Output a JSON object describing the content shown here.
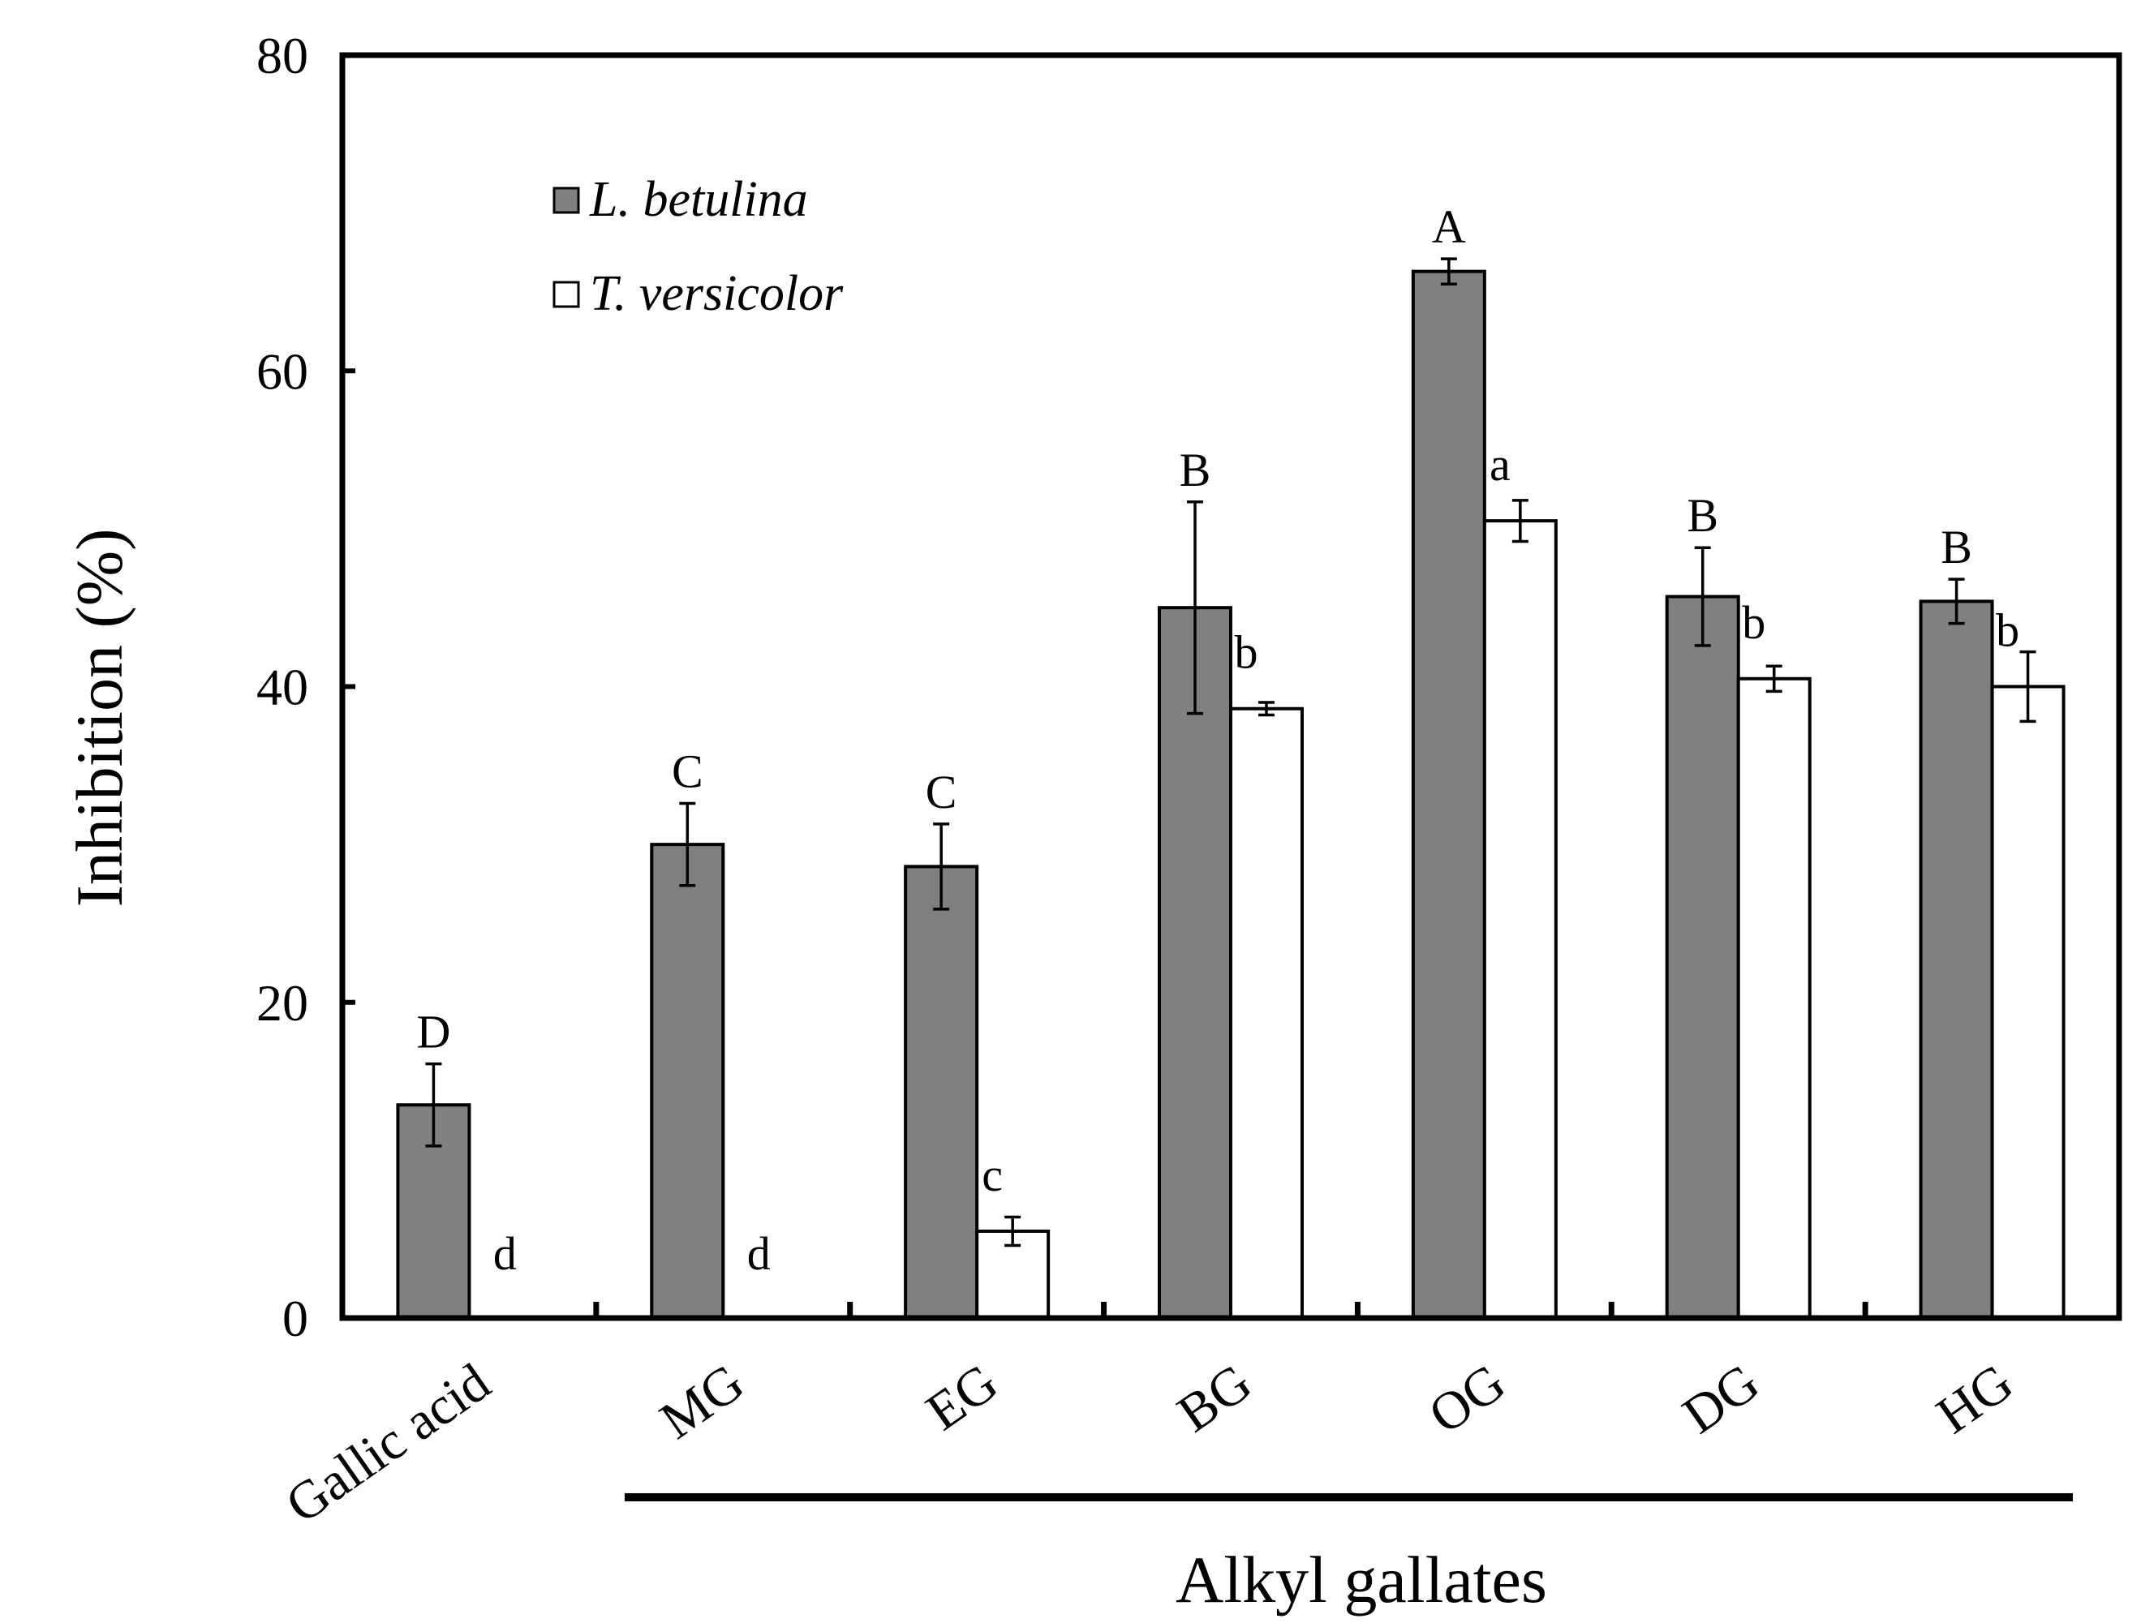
{
  "chart_data": {
    "type": "bar",
    "ylabel": "Inhibition (%)",
    "xgroup_label": "Alkyl gallates",
    "ylim": [
      0,
      80
    ],
    "yticks": [
      0,
      20,
      40,
      60,
      80
    ],
    "legend_position": "top-left",
    "categories": [
      "Gallic acid",
      "MG",
      "EG",
      "BG",
      "OG",
      "DG",
      "HG"
    ],
    "grouped_categories": [
      "MG",
      "EG",
      "BG",
      "OG",
      "DG",
      "HG"
    ],
    "series": [
      {
        "name": "L. betulina",
        "color": "#808080",
        "values": [
          13.5,
          30.0,
          28.6,
          45.0,
          66.3,
          45.7,
          45.4
        ],
        "errors": [
          2.6,
          2.6,
          2.7,
          6.7,
          0.8,
          3.1,
          1.4
        ],
        "letters": [
          "D",
          "C",
          "C",
          "B",
          "A",
          "B",
          "B"
        ]
      },
      {
        "name": "T. versicolor",
        "color": "#ffffff",
        "values": [
          0,
          0,
          5.5,
          38.6,
          50.5,
          40.5,
          40.0
        ],
        "errors": [
          0,
          0,
          0.9,
          0.4,
          1.3,
          0.8,
          2.2
        ],
        "letters": [
          "d",
          "d",
          "c",
          "b",
          "a",
          "b",
          "b"
        ]
      }
    ]
  }
}
